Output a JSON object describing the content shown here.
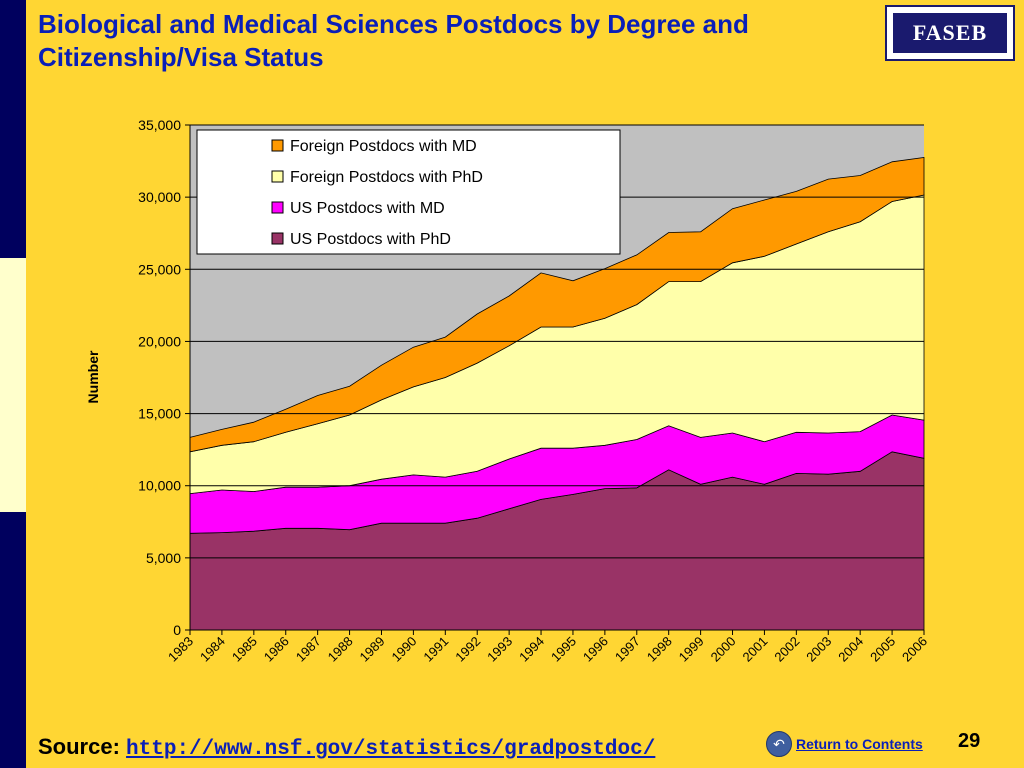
{
  "slide": {
    "title": "Biological and Medical Sciences Postdocs by Degree and Citizenship/Visa Status",
    "logo_text": "FASEB",
    "source_label": "Source:",
    "source_url": "http://www.nsf.gov/statistics/gradpostdoc/",
    "return_label": "Return to Contents",
    "page_number": "29",
    "colors": {
      "background": "#FFD633",
      "side_bar": "#00005E",
      "title": "#0A1FB8"
    }
  },
  "chart_data": {
    "type": "area",
    "stacked": true,
    "title": "",
    "xlabel": "",
    "ylabel": "Number",
    "ylim": [
      0,
      35000
    ],
    "yticks": [
      0,
      5000,
      10000,
      15000,
      20000,
      25000,
      30000,
      35000
    ],
    "ytick_labels": [
      "0",
      "5,000",
      "10,000",
      "15,000",
      "20,000",
      "25,000",
      "30,000",
      "35,000"
    ],
    "grid": "horizontal",
    "legend_position": "top-left",
    "categories": [
      "1983",
      "1984",
      "1985",
      "1986",
      "1987",
      "1988",
      "1989",
      "1990",
      "1991",
      "1992",
      "1993",
      "1994",
      "1995",
      "1996",
      "1997",
      "1998",
      "1999",
      "2000",
      "2001",
      "2002",
      "2003",
      "2004",
      "2005",
      "2006"
    ],
    "series": [
      {
        "name": "US Postdocs with PhD",
        "color": "#993366",
        "values": [
          6700,
          6750,
          6850,
          7050,
          7050,
          6950,
          7400,
          7400,
          7400,
          7750,
          8400,
          9050,
          9400,
          9800,
          9850,
          11100,
          10100,
          10600,
          10100,
          10850,
          10800,
          11000,
          12350,
          11900
        ]
      },
      {
        "name": "US Postdocs with MD",
        "color": "#FF00FF",
        "values": [
          2750,
          2950,
          2750,
          2850,
          2850,
          3050,
          3050,
          3350,
          3200,
          3250,
          3450,
          3550,
          3200,
          3000,
          3350,
          3050,
          3250,
          3050,
          2950,
          2850,
          2850,
          2750,
          2550,
          2650
        ]
      },
      {
        "name": "Foreign Postdocs with PhD",
        "color": "#FFFFAA",
        "values": [
          2900,
          3100,
          3450,
          3800,
          4400,
          4900,
          5500,
          6100,
          6900,
          7500,
          7850,
          8400,
          8400,
          8800,
          9350,
          10000,
          10800,
          11800,
          12850,
          13050,
          13950,
          14550,
          14800,
          15600
        ]
      },
      {
        "name": "Foreign Postdocs with MD",
        "color": "#FF9900",
        "values": [
          1000,
          1100,
          1350,
          1600,
          1950,
          2000,
          2400,
          2750,
          2800,
          3400,
          3450,
          3750,
          3200,
          3450,
          3450,
          3400,
          3450,
          3750,
          3900,
          3650,
          3650,
          3200,
          2750,
          2600
        ]
      }
    ],
    "legend_order": [
      "Foreign Postdocs with MD",
      "Foreign Postdocs with PhD",
      "US Postdocs with MD",
      "US Postdocs with PhD"
    ],
    "plot_background": "#C0C0C0"
  }
}
